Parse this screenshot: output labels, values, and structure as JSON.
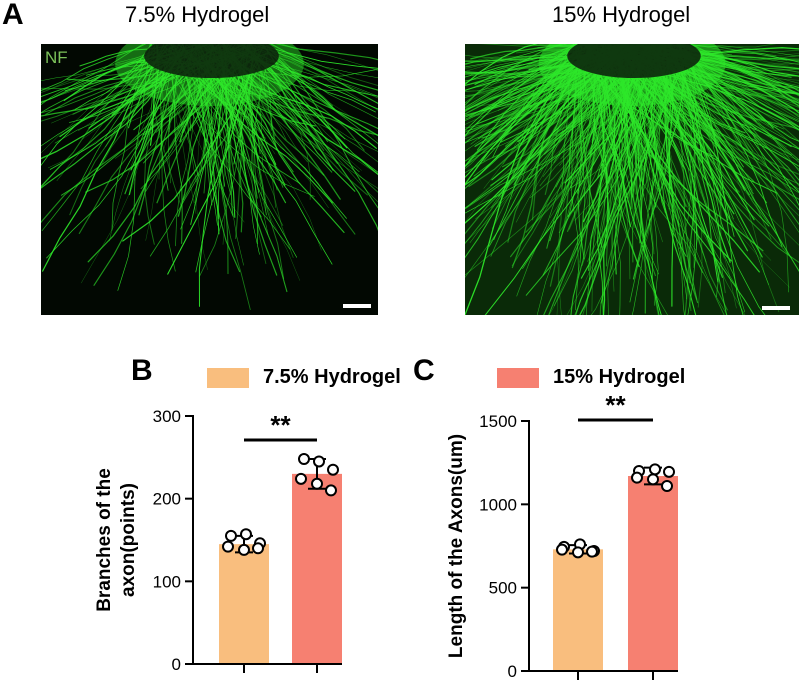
{
  "panels": {
    "a": {
      "letter": "A",
      "left_title": "7.5% Hydrogel",
      "right_title": "15% Hydrogel",
      "stain_label": "NF"
    },
    "b": {
      "letter": "B",
      "legend": "7.5% Hydrogel",
      "significance": "**"
    },
    "c": {
      "letter": "C",
      "legend": "15% Hydrogel",
      "significance": "**"
    }
  },
  "colors": {
    "bar_7_5": "#f9be7e",
    "bar_15": "#f68071",
    "neuron_green": "#2ee82a",
    "stain_label": "#7cc25a"
  },
  "chart_data": [
    {
      "id": "B",
      "type": "bar",
      "title": "",
      "xlabel": "",
      "ylabel": "Branches of the axon(points)",
      "ylabel_lines": [
        "Branches of the",
        "axon(points)"
      ],
      "ylim": [
        0,
        300
      ],
      "yticks": [
        0,
        100,
        200,
        300
      ],
      "categories": [
        "7.5% Hydrogel",
        "15% Hydrogel"
      ],
      "values": [
        145,
        230
      ],
      "errors": [
        10,
        18
      ],
      "points": [
        [
          155,
          157,
          146,
          142,
          138,
          140
        ],
        [
          248,
          245,
          235,
          224,
          218,
          210
        ]
      ]
    },
    {
      "id": "C",
      "type": "bar",
      "title": "",
      "xlabel": "",
      "ylabel": "Length of the Axons(um)",
      "ylim": [
        0,
        1500
      ],
      "yticks": [
        0,
        500,
        1000,
        1500
      ],
      "categories": [
        "7.5% Hydrogel",
        "15% Hydrogel"
      ],
      "values": [
        730,
        1170
      ],
      "errors": [
        25,
        50
      ],
      "points": [
        [
          745,
          760,
          720,
          728,
          712,
          716
        ],
        [
          1200,
          1210,
          1195,
          1160,
          1150,
          1110
        ]
      ]
    }
  ]
}
